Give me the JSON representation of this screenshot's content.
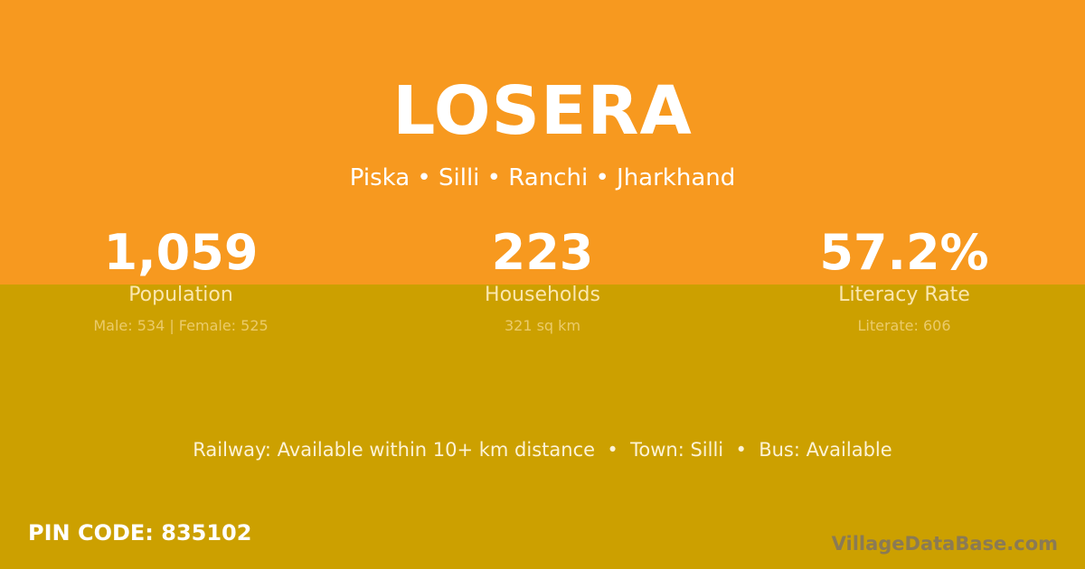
{
  "village": "LOSERA",
  "location": "Piska • Silli • Ranchi • Jharkhand",
  "stats": [
    {
      "value": "1,059",
      "label": "Population",
      "sub": "Male: 534 | Female: 525"
    },
    {
      "value": "223",
      "label": "Households",
      "sub": "321 sq km"
    },
    {
      "value": "57.2%",
      "label": "Literacy Rate",
      "sub": "Literate: 606"
    }
  ],
  "info": "Railway: Available within 10+ km distance  •  Town: Silli  •  Bus: Available",
  "pin": "PIN CODE: 835102",
  "brand": "VillageDataBase.com",
  "colors": {
    "top": "#F7991F",
    "bottom": "#CCA000"
  }
}
